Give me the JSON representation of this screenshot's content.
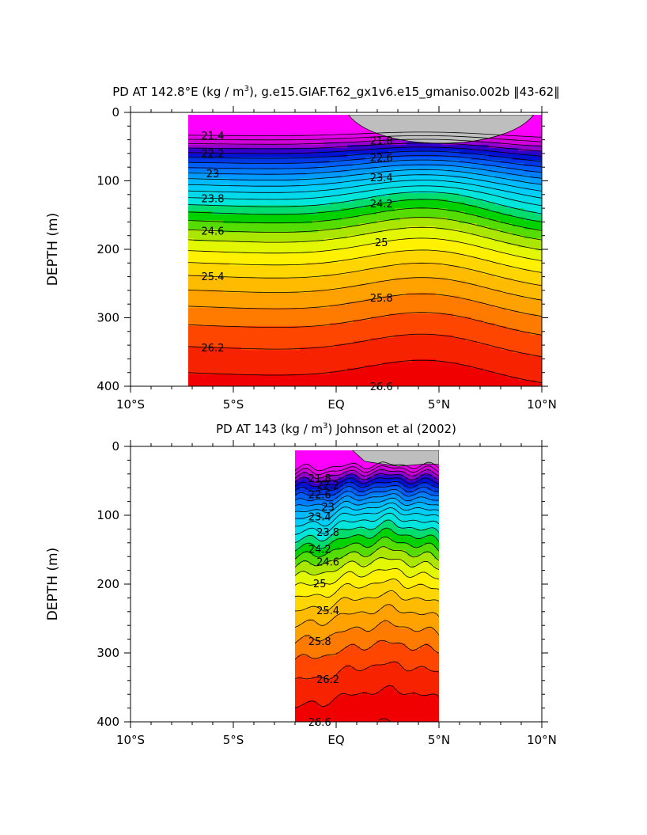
{
  "chart_data": [
    {
      "type": "heatmap",
      "subtype": "filled-contour",
      "title_main": "PD AT 142.8°E (kg / m",
      "title_sup": "3",
      "title_tail": "), g.e15.GIAF.T62_gx1v6.e15_gmaniso.002b ‖43-62‖",
      "ylabel": "DEPTH (m)",
      "xticks": [
        "10°S",
        "5°S",
        "EQ",
        "5°N",
        "10°N"
      ],
      "yticks": [
        "0",
        "100",
        "200",
        "300",
        "400"
      ],
      "xlim": [
        -10,
        10
      ],
      "ylim": [
        400,
        0
      ],
      "data_xrange": [
        -7.2,
        10
      ],
      "missing_color": "#bebebe",
      "contour_interval": 0.2,
      "contour_labels": [
        "21.4",
        "21.8",
        "22.2",
        "22.6",
        "23",
        "23.4",
        "23.8",
        "24.2",
        "24.6",
        "25",
        "25.4",
        "25.8",
        "26.2",
        "26.6"
      ]
    },
    {
      "type": "heatmap",
      "subtype": "filled-contour",
      "title_main": "PD AT 143 (kg / m",
      "title_sup": "3",
      "title_tail": ") Johnson et al (2002)",
      "ylabel": "DEPTH (m)",
      "xticks": [
        "10°S",
        "5°S",
        "EQ",
        "5°N",
        "10°N"
      ],
      "yticks": [
        "0",
        "100",
        "200",
        "300",
        "400"
      ],
      "xlim": [
        -10,
        10
      ],
      "ylim": [
        400,
        0
      ],
      "data_xrange": [
        -2,
        5
      ],
      "missing_color": "#bebebe",
      "contour_interval": 0.2,
      "contour_labels": [
        "21.8",
        "22.2",
        "22.6",
        "23",
        "23.4",
        "23.8",
        "24.2",
        "24.6",
        "25",
        "25.4",
        "25.8",
        "26.2",
        "26.6"
      ]
    }
  ]
}
